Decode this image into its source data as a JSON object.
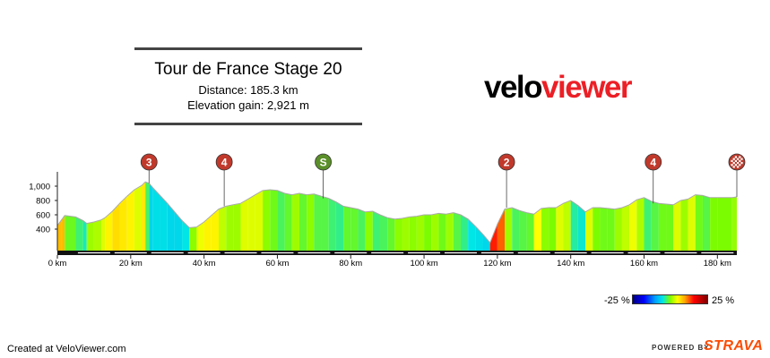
{
  "header": {
    "title": "Tour de France Stage 20",
    "distance": "Distance: 185.3 km",
    "elevation_gain": "Elevation gain: 2,921 m"
  },
  "logo": {
    "part1": "velo",
    "part2": "viewer"
  },
  "gradient_legend": {
    "min_label": "-25 %",
    "max_label": "25 %"
  },
  "footer": {
    "created": "Created at VeloViewer.com",
    "powered_by": "POWERED BY",
    "strava": "STRAVA"
  },
  "colors": {
    "brand_red": "#ec1f26",
    "strava_orange": "#fc4c02",
    "marker_red": "#c0392b",
    "marker_green": "#5a8f29"
  },
  "chart_data": {
    "type": "area",
    "title": "Tour de France Stage 20",
    "xlabel": "",
    "ylabel": "",
    "x_unit": "km",
    "xlim": [
      0,
      185.3
    ],
    "ylim": [
      100,
      1100
    ],
    "x_ticks": [
      0,
      20,
      40,
      60,
      80,
      100,
      120,
      140,
      160,
      180
    ],
    "x_tick_labels": [
      "0 km",
      "20 km",
      "40 km",
      "60 km",
      "80 km",
      "100 km",
      "120 km",
      "140 km",
      "160 km",
      "180 km"
    ],
    "y_ticks": [
      400,
      600,
      800,
      1000
    ],
    "y_tick_labels": [
      "400",
      "600",
      "800",
      "1,000"
    ],
    "profile": {
      "x": [
        0,
        1,
        2,
        5,
        7,
        8,
        10,
        12,
        13,
        15,
        17,
        19,
        21,
        23,
        24,
        25,
        26,
        28,
        30,
        32,
        34,
        36,
        38,
        40,
        42,
        44,
        46,
        48,
        50,
        52,
        54,
        56,
        58,
        60,
        62,
        64,
        66,
        68,
        70,
        72,
        74,
        76,
        78,
        80,
        82,
        84,
        86,
        88,
        90,
        92,
        94,
        96,
        98,
        100,
        102,
        104,
        106,
        108,
        110,
        112,
        114,
        116,
        118,
        120,
        122,
        124,
        126,
        128,
        130,
        132,
        134,
        136,
        138,
        140,
        142,
        144,
        146,
        148,
        150,
        152,
        154,
        156,
        158,
        160,
        162,
        164,
        166,
        168,
        170,
        172,
        174,
        176,
        178,
        180,
        182,
        184,
        185.3
      ],
      "elevation": [
        450,
        520,
        590,
        570,
        520,
        480,
        500,
        530,
        560,
        650,
        760,
        860,
        950,
        1010,
        1060,
        1040,
        980,
        870,
        760,
        640,
        520,
        420,
        430,
        500,
        590,
        680,
        720,
        740,
        760,
        820,
        880,
        940,
        950,
        940,
        900,
        880,
        900,
        880,
        890,
        860,
        830,
        780,
        720,
        700,
        680,
        640,
        650,
        600,
        560,
        540,
        550,
        570,
        580,
        600,
        600,
        620,
        610,
        630,
        600,
        540,
        440,
        330,
        210,
        470,
        680,
        700,
        660,
        630,
        610,
        690,
        700,
        700,
        760,
        800,
        730,
        640,
        700,
        700,
        690,
        680,
        700,
        740,
        810,
        840,
        790,
        760,
        750,
        740,
        800,
        820,
        880,
        870,
        840,
        840,
        840,
        840,
        850
      ]
    },
    "gradient_color_scale": {
      "min": -25,
      "max": 25,
      "unit": "%"
    },
    "climb_markers": [
      {
        "label": "3",
        "km": 25,
        "type": "climb"
      },
      {
        "label": "4",
        "km": 45.5,
        "type": "climb"
      },
      {
        "label": "S",
        "km": 72.5,
        "type": "sprint"
      },
      {
        "label": "2",
        "km": 122.5,
        "type": "climb"
      },
      {
        "label": "4",
        "km": 162.5,
        "type": "climb"
      },
      {
        "label": "",
        "km": 185.3,
        "type": "finish"
      }
    ]
  }
}
